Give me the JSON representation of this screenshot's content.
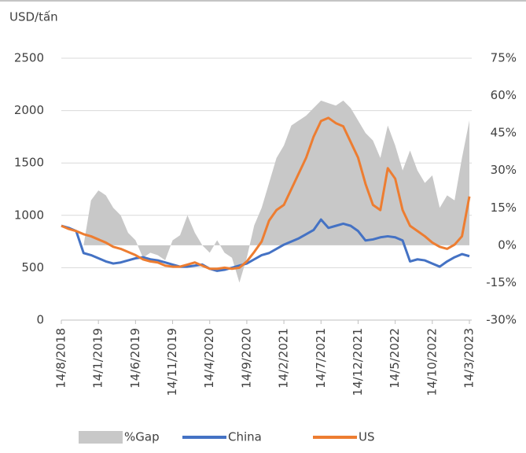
{
  "chart_data": {
    "type": "line",
    "y_label": "USD/tấn",
    "x": [
      "14/8/2018",
      "14/9/2018",
      "14/10/2018",
      "14/11/2018",
      "14/12/2018",
      "14/1/2019",
      "14/2/2019",
      "14/3/2019",
      "14/4/2019",
      "14/5/2019",
      "14/6/2019",
      "14/7/2019",
      "14/8/2019",
      "14/9/2019",
      "14/10/2019",
      "14/11/2019",
      "14/12/2019",
      "14/1/2020",
      "14/2/2020",
      "14/3/2020",
      "14/4/2020",
      "14/5/2020",
      "14/6/2020",
      "14/7/2020",
      "14/8/2020",
      "14/9/2020",
      "14/10/2020",
      "14/11/2020",
      "14/12/2020",
      "14/1/2021",
      "14/2/2021",
      "14/3/2021",
      "14/4/2021",
      "14/5/2021",
      "14/6/2021",
      "14/7/2021",
      "14/8/2021",
      "14/9/2021",
      "14/10/2021",
      "14/11/2021",
      "14/12/2021",
      "14/1/2022",
      "14/2/2022",
      "14/3/2022",
      "14/4/2022",
      "14/5/2022",
      "14/6/2022",
      "14/7/2022",
      "14/8/2022",
      "14/9/2022",
      "14/10/2022",
      "14/11/2022",
      "14/12/2022",
      "14/1/2023",
      "14/2/2023",
      "14/3/2023"
    ],
    "xticks": [
      "14/8/2018",
      "14/1/2019",
      "14/6/2019",
      "14/11/2019",
      "14/4/2020",
      "14/9/2020",
      "14/2/2021",
      "14/7/2021",
      "14/12/2021",
      "14/5/2022",
      "14/10/2022",
      "14/3/2023"
    ],
    "ylim": [
      0,
      2500
    ],
    "yticks": [
      0,
      500,
      1000,
      1500,
      2000,
      2500
    ],
    "y2lim": [
      -30,
      75
    ],
    "y2ticks": [
      {
        "value": -30,
        "label": "-30%"
      },
      {
        "value": -15,
        "label": "-15%"
      },
      {
        "value": 0,
        "label": "0%"
      },
      {
        "value": 15,
        "label": "15%"
      },
      {
        "value": 30,
        "label": "30%"
      },
      {
        "value": 45,
        "label": "45%"
      },
      {
        "value": 60,
        "label": "60%"
      },
      {
        "value": 75,
        "label": "75%"
      }
    ],
    "series": [
      {
        "name": "%Gap",
        "type": "area",
        "axis": "y2",
        "color": "#c8c8c8",
        "values": [
          0,
          0,
          0,
          0,
          18,
          22,
          20,
          15,
          12,
          5,
          2,
          -5,
          -3,
          -4,
          -6,
          2,
          4,
          12,
          5,
          0,
          -3,
          2,
          -3,
          -5,
          -15,
          -5,
          8,
          15,
          25,
          35,
          40,
          48,
          50,
          52,
          55,
          58,
          57,
          56,
          58,
          55,
          50,
          45,
          42,
          35,
          48,
          40,
          30,
          38,
          30,
          25,
          28,
          15,
          20,
          18,
          35,
          50
        ]
      },
      {
        "name": "China",
        "type": "line",
        "color": "#4472c4",
        "values": [
          900,
          880,
          850,
          640,
          620,
          590,
          560,
          540,
          550,
          570,
          590,
          600,
          580,
          570,
          550,
          530,
          510,
          510,
          520,
          530,
          490,
          470,
          480,
          500,
          520,
          540,
          580,
          620,
          640,
          680,
          720,
          750,
          780,
          820,
          860,
          960,
          880,
          900,
          920,
          900,
          850,
          760,
          770,
          790,
          800,
          790,
          760,
          560,
          580,
          570,
          540,
          510,
          560,
          600,
          630,
          610
        ]
      },
      {
        "name": "US",
        "type": "line",
        "color": "#ed7d31",
        "values": [
          900,
          870,
          850,
          820,
          800,
          770,
          740,
          700,
          680,
          650,
          620,
          580,
          560,
          550,
          520,
          510,
          510,
          530,
          550,
          520,
          490,
          490,
          500,
          490,
          500,
          560,
          650,
          750,
          950,
          1050,
          1100,
          1250,
          1400,
          1550,
          1750,
          1900,
          1930,
          1880,
          1850,
          1700,
          1550,
          1300,
          1100,
          1050,
          1450,
          1350,
          1050,
          900,
          850,
          800,
          740,
          700,
          680,
          720,
          800,
          1180
        ]
      }
    ]
  }
}
